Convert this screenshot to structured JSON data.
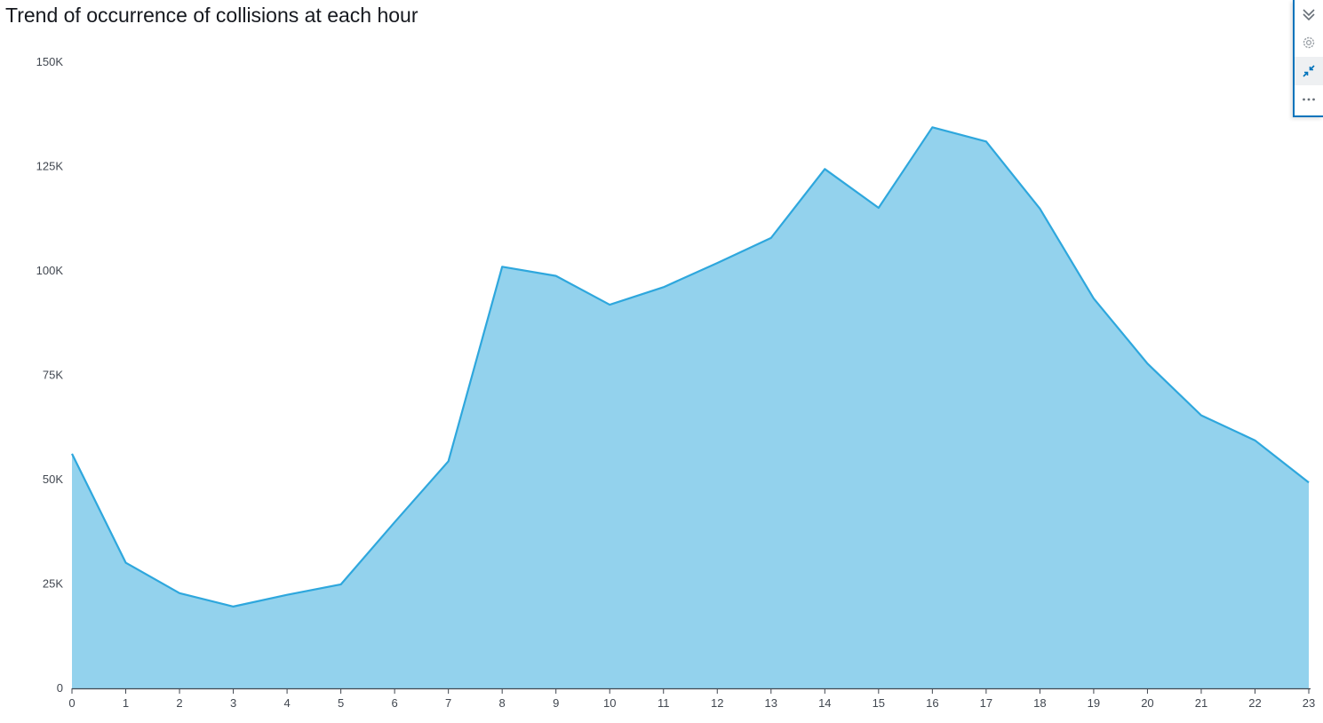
{
  "visual": {
    "title": "Trend of occurrence of collisions at each hour"
  },
  "toolbar": {
    "icons": [
      "double-chevron-down-icon",
      "gear-icon",
      "collapse-arrows-icon",
      "more-dots-icon"
    ]
  },
  "colors": {
    "area_fill": "#93d2ed",
    "line": "#2ea7dd",
    "axis": "#414750"
  },
  "chart_data": {
    "type": "area",
    "title": "Trend of occurrence of collisions at each hour",
    "xlabel": "",
    "ylabel": "",
    "x": [
      0,
      1,
      2,
      3,
      4,
      5,
      6,
      7,
      8,
      9,
      10,
      11,
      12,
      13,
      14,
      15,
      16,
      17,
      18,
      19,
      20,
      21,
      22,
      23
    ],
    "values": [
      56200,
      30100,
      22800,
      19600,
      22400,
      24900,
      39800,
      54400,
      101000,
      98800,
      91900,
      96100,
      101900,
      107900,
      124400,
      115100,
      134400,
      131000,
      114900,
      93400,
      77800,
      65400,
      59400,
      49300
    ],
    "ylim": [
      0,
      150000
    ],
    "yticks": [
      0,
      25000,
      50000,
      75000,
      100000,
      125000,
      150000
    ],
    "ytick_labels": [
      "0",
      "25K",
      "50K",
      "75K",
      "100K",
      "125K",
      "150K"
    ],
    "xtick_labels": [
      "0",
      "1",
      "2",
      "3",
      "4",
      "5",
      "6",
      "7",
      "8",
      "9",
      "10",
      "11",
      "12",
      "13",
      "14",
      "15",
      "16",
      "17",
      "18",
      "19",
      "20",
      "21",
      "22",
      "23"
    ],
    "grid": false,
    "legend": "none"
  }
}
